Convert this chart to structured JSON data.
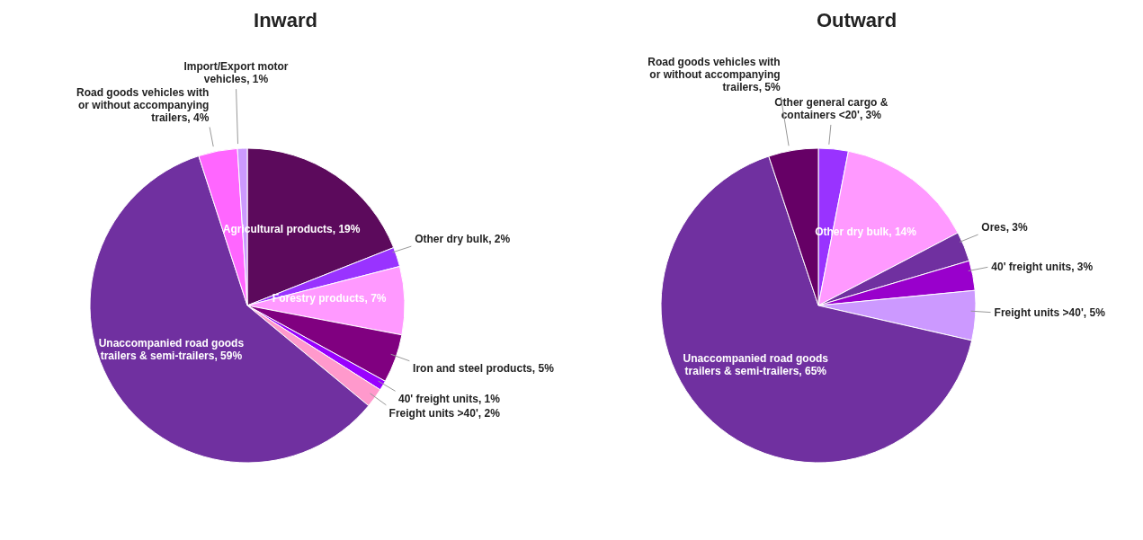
{
  "chart_data": [
    {
      "type": "pie",
      "title": "Inward",
      "categories": [
        "Agricultural products",
        "Other dry bulk",
        "Forestry products",
        "Iron and steel products",
        "40' freight units",
        "Freight units >40'",
        "Unaccompanied road goods trailers & semi-trailers",
        "Road goods vehicles with or without accompanying trailers",
        "Import/Export motor vehicles"
      ],
      "values": [
        19,
        2,
        7,
        5,
        1,
        2,
        59,
        4,
        1
      ],
      "value_labels": [
        ", 19%",
        ", 2%",
        ", 7%",
        ", 5%",
        ", 1%",
        ", 2%",
        ", 59%",
        ", 4%",
        ", 1%"
      ],
      "colors": [
        "#5c0a5c",
        "#9933ff",
        "#ff99ff",
        "#800080",
        "#9900ff",
        "#ff99cc",
        "#7030a0",
        "#ff66ff",
        "#cc99ff"
      ],
      "legend": false
    },
    {
      "type": "pie",
      "title": "Outward",
      "categories": [
        "Other general cargo & containers <20'",
        "Other dry bulk",
        "Ores",
        "40' freight units",
        "Freight units >40'",
        "Unaccompanied road goods trailers & semi-trailers",
        "Road goods vehicles with or without accompanying trailers"
      ],
      "values": [
        3,
        14,
        3,
        3,
        5,
        65,
        5
      ],
      "value_labels": [
        ", 3%",
        ", 14%",
        ", 3%",
        ", 3%",
        ", 5%",
        ", 65%",
        ", 5%"
      ],
      "colors": [
        "#9933ff",
        "#ff99ff",
        "#7030a0",
        "#9900cc",
        "#cc99ff",
        "#7030a0",
        "#660066"
      ],
      "legend": false
    }
  ]
}
